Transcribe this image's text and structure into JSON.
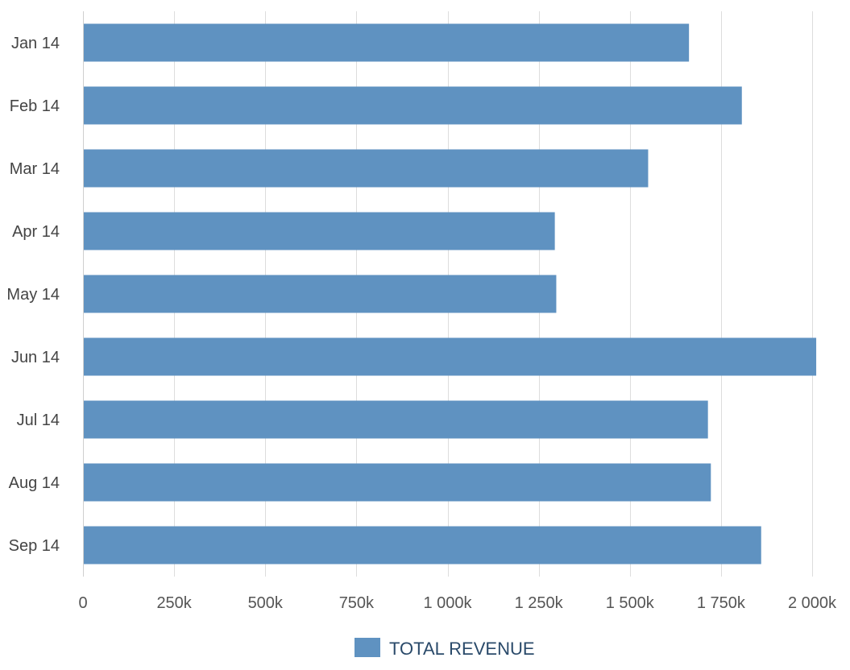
{
  "chart_data": {
    "type": "bar",
    "orientation": "horizontal",
    "categories": [
      "Jan 14",
      "Feb 14",
      "Mar 14",
      "Apr 14",
      "May 14",
      "Jun 14",
      "Jul 14",
      "Aug 14",
      "Sep 14"
    ],
    "series": [
      {
        "name": "TOTAL REVENUE",
        "values": [
          1660000,
          1805000,
          1548000,
          1292000,
          1296000,
          2009000,
          1712000,
          1720000,
          1858000
        ]
      }
    ],
    "x_ticks": [
      0,
      250000,
      500000,
      750000,
      1000000,
      1250000,
      1500000,
      1750000,
      2000000
    ],
    "x_tick_labels": [
      "0",
      "250k",
      "500k",
      "750k",
      "1 000k",
      "1 250k",
      "1 500k",
      "1 750k",
      "2 000k"
    ],
    "xlim": [
      0,
      2000000
    ],
    "grid": true,
    "legend": "bottom-center",
    "bar_color": "#5f92c1"
  }
}
